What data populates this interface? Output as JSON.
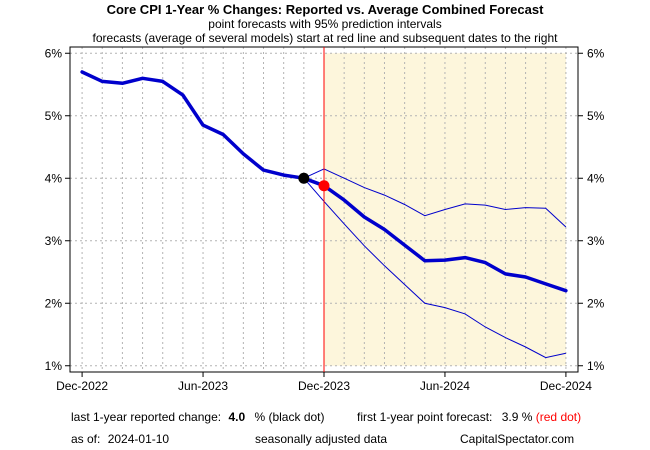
{
  "chart_data": {
    "type": "line",
    "title": "Core CPI 1-Year % Changes: Reported vs. Average Combined Forecast",
    "subtitle_1": "point forecasts with 95% prediction intervals",
    "subtitle_2": "forecasts (average of several models) start at red line and subsequent dates to the right",
    "x_tick_labels": [
      "Dec-2022",
      "Jun-2023",
      "Dec-2023",
      "Jun-2024",
      "Dec-2024"
    ],
    "x_tick_month_index": [
      0,
      6,
      12,
      18,
      24
    ],
    "xlim_month_index": [
      -0.6,
      24.6
    ],
    "forecast_start_month_index": 12,
    "y_ticks": [
      1,
      2,
      3,
      4,
      5,
      6
    ],
    "y_tick_labels": [
      "1%",
      "2%",
      "3%",
      "4%",
      "5%",
      "6%"
    ],
    "ylim": [
      0.9,
      6.1
    ],
    "grid": true,
    "colors": {
      "reported": "#0000cc",
      "forecast": "#0000cc",
      "interval": "#0000cc",
      "forecast_line": "#ff0000",
      "forecast_shade": "#fdf6dc",
      "grid": "#b3b3b3",
      "black_dot": "#000000",
      "red_dot": "#ff0000"
    },
    "series": [
      {
        "name": "Reported",
        "x": [
          0,
          1,
          2,
          3,
          4,
          5,
          6,
          7,
          8,
          9,
          10,
          11
        ],
        "values": [
          5.7,
          5.55,
          5.52,
          5.6,
          5.55,
          5.33,
          4.85,
          4.7,
          4.39,
          4.13,
          4.05,
          4.0
        ]
      },
      {
        "name": "Forecast",
        "x": [
          11,
          12,
          13,
          14,
          15,
          16,
          17,
          18,
          19,
          20,
          21,
          22,
          23,
          24
        ],
        "values": [
          4.0,
          3.88,
          3.65,
          3.38,
          3.18,
          2.93,
          2.68,
          2.69,
          2.73,
          2.65,
          2.47,
          2.42,
          2.31,
          2.2
        ]
      },
      {
        "name": "Upper 95% interval",
        "x": [
          11,
          12,
          13,
          14,
          15,
          16,
          17,
          18,
          19,
          20,
          21,
          22,
          23,
          24
        ],
        "values": [
          4.0,
          4.15,
          4.0,
          3.85,
          3.73,
          3.58,
          3.4,
          3.5,
          3.59,
          3.57,
          3.5,
          3.53,
          3.52,
          3.22
        ]
      },
      {
        "name": "Lower 95% interval",
        "x": [
          11,
          12,
          13,
          14,
          15,
          16,
          17,
          18,
          19,
          20,
          21,
          22,
          23,
          24
        ],
        "values": [
          4.0,
          3.63,
          3.27,
          2.92,
          2.6,
          2.3,
          2.0,
          1.93,
          1.83,
          1.62,
          1.45,
          1.3,
          1.13,
          1.2
        ]
      }
    ],
    "markers": {
      "last_reported": {
        "x": 11,
        "value": 4.0
      },
      "first_forecast": {
        "x": 12,
        "value": 3.88
      }
    }
  },
  "footer": {
    "last_label": "last 1-year reported change:",
    "last_value": "4.0",
    "last_suffix": "% (black dot)",
    "first_label": "first 1-year point forecast:",
    "first_value": "3.9 %",
    "first_suffix": "(red dot)",
    "asof_label": "as of:",
    "asof_date": "2024-01-10",
    "seasonal": "seasonally adjusted data",
    "source": "CapitalSpectator.com"
  }
}
